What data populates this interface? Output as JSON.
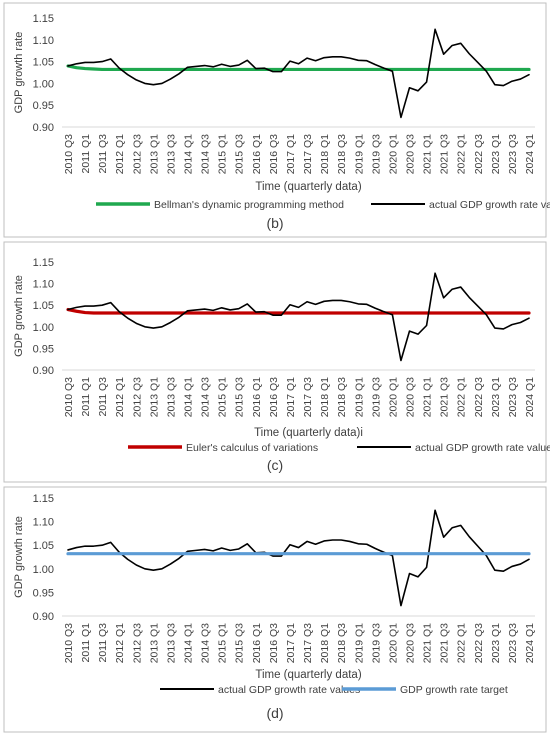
{
  "chart_data": [
    {
      "type": "line",
      "panel_label": "(b)",
      "xlabel": "Time (quarterly data)",
      "ylabel": "GDP growth rate",
      "ylim": [
        0.9,
        1.15
      ],
      "yticks": [
        "0.90",
        "0.95",
        "1.00",
        "1.05",
        "1.10",
        "1.15"
      ],
      "grid": false,
      "legend_position": "bottom",
      "series": [
        {
          "name": "Bellman's dynamic programming method",
          "color": "#1fa84f",
          "values": [
            1.04,
            1.036,
            1.034,
            1.033,
            1.032,
            1.032,
            1.032,
            1.032,
            1.032,
            1.032,
            1.032,
            1.032,
            1.032,
            1.032,
            1.032,
            1.032,
            1.032,
            1.032,
            1.032,
            1.032,
            1.032,
            1.032,
            1.032,
            1.032,
            1.032,
            1.032,
            1.032,
            1.032,
            1.032,
            1.032,
            1.032,
            1.032,
            1.032,
            1.032,
            1.032,
            1.032,
            1.032,
            1.032,
            1.032,
            1.032,
            1.032,
            1.032,
            1.032,
            1.032,
            1.032,
            1.032,
            1.032,
            1.032,
            1.032,
            1.032,
            1.032,
            1.032,
            1.032,
            1.032,
            1.032
          ]
        },
        {
          "name": "actual GDP growth rate values",
          "color": "#000000",
          "ref": "actual"
        }
      ]
    },
    {
      "type": "line",
      "panel_label": "(c)",
      "xlabel": "Time (quarterly data)i",
      "ylabel": "GDP growth rate",
      "ylim": [
        0.9,
        1.15
      ],
      "yticks": [
        "0.90",
        "0.95",
        "1.00",
        "1.05",
        "1.10",
        "1.15"
      ],
      "grid": false,
      "legend_position": "bottom",
      "series": [
        {
          "name": "Euler's calculus of variations",
          "color": "#c00000",
          "values": [
            1.04,
            1.036,
            1.033,
            1.032,
            1.032,
            1.032,
            1.032,
            1.032,
            1.032,
            1.032,
            1.032,
            1.032,
            1.032,
            1.032,
            1.032,
            1.032,
            1.032,
            1.032,
            1.032,
            1.032,
            1.032,
            1.032,
            1.032,
            1.032,
            1.032,
            1.032,
            1.032,
            1.032,
            1.032,
            1.032,
            1.032,
            1.032,
            1.032,
            1.032,
            1.032,
            1.032,
            1.032,
            1.032,
            1.032,
            1.032,
            1.032,
            1.032,
            1.032,
            1.032,
            1.032,
            1.032,
            1.032,
            1.032,
            1.032,
            1.032,
            1.032,
            1.032,
            1.032,
            1.032,
            1.032
          ]
        },
        {
          "name": "actual GDP growth rate values",
          "color": "#000000",
          "ref": "actual"
        }
      ]
    },
    {
      "type": "line",
      "panel_label": "(d)",
      "xlabel": "Time (quarterly data)",
      "ylabel": "GDP growth rate",
      "ylim": [
        0.9,
        1.15
      ],
      "yticks": [
        "0.90",
        "0.95",
        "1.00",
        "1.05",
        "1.10",
        "1.15"
      ],
      "grid": false,
      "legend_position": "bottom",
      "series": [
        {
          "name": "actual GDP growth rate values",
          "color": "#000000",
          "ref": "actual"
        },
        {
          "name": "GDP growth rate target",
          "color": "#5b9bd5",
          "values": [
            1.032,
            1.032,
            1.032,
            1.032,
            1.032,
            1.032,
            1.032,
            1.032,
            1.032,
            1.032,
            1.032,
            1.032,
            1.032,
            1.032,
            1.032,
            1.032,
            1.032,
            1.032,
            1.032,
            1.032,
            1.032,
            1.032,
            1.032,
            1.032,
            1.032,
            1.032,
            1.032,
            1.032,
            1.032,
            1.032,
            1.032,
            1.032,
            1.032,
            1.032,
            1.032,
            1.032,
            1.032,
            1.032,
            1.032,
            1.032,
            1.032,
            1.032,
            1.032,
            1.032,
            1.032,
            1.032,
            1.032,
            1.032,
            1.032,
            1.032,
            1.032,
            1.032,
            1.032,
            1.032,
            1.032
          ]
        }
      ]
    }
  ],
  "shared": {
    "x": [
      "2010 Q3",
      "2010 Q4",
      "2011 Q1",
      "2011 Q2",
      "2011 Q3",
      "2011 Q4",
      "2012 Q1",
      "2012 Q2",
      "2012 Q3",
      "2012 Q4",
      "2013 Q1",
      "2013 Q2",
      "2013 Q3",
      "2013 Q4",
      "2014 Q1",
      "2014 Q2",
      "2014 Q3",
      "2014 Q4",
      "2015 Q1",
      "2015 Q2",
      "2015 Q3",
      "2015 Q4",
      "2016 Q1",
      "2016 Q2",
      "2016 Q3",
      "2016 Q4",
      "2017 Q1",
      "2017 Q2",
      "2017 Q3",
      "2017 Q4",
      "2018 Q1",
      "2018 Q2",
      "2018 Q3",
      "2018 Q4",
      "2019 Q1",
      "2019 Q2",
      "2019 Q3",
      "2019 Q4",
      "2020 Q1",
      "2020 Q2",
      "2020 Q3",
      "2020 Q4",
      "2021 Q1",
      "2021 Q2",
      "2021 Q3",
      "2021 Q4",
      "2022 Q1",
      "2022 Q2",
      "2022 Q3",
      "2022 Q4",
      "2023 Q1",
      "2023 Q2",
      "2023 Q3",
      "2023 Q4",
      "2024 Q1"
    ],
    "xtick_labels": [
      "2010 Q3",
      "2011 Q1",
      "2011 Q3",
      "2012 Q1",
      "2012 Q3",
      "2013 Q1",
      "2013 Q3",
      "2014 Q1",
      "2014 Q3",
      "2015 Q1",
      "2015 Q3",
      "2016 Q1",
      "2016 Q3",
      "2017 Q1",
      "2017 Q3",
      "2018 Q1",
      "2018 Q3",
      "2019 Q1",
      "2019 Q3",
      "2020 Q1",
      "2020 Q3",
      "2021 Q1",
      "2021 Q3",
      "2022 Q1",
      "2022 Q3",
      "2023 Q1",
      "2023 Q3",
      "2024 Q1"
    ],
    "actual": [
      1.04,
      1.045,
      1.048,
      1.048,
      1.05,
      1.056,
      1.035,
      1.02,
      1.008,
      1.0,
      0.997,
      1.0,
      1.01,
      1.022,
      1.037,
      1.039,
      1.041,
      1.038,
      1.044,
      1.039,
      1.042,
      1.053,
      1.034,
      1.035,
      1.027,
      1.027,
      1.051,
      1.045,
      1.058,
      1.052,
      1.059,
      1.061,
      1.061,
      1.058,
      1.053,
      1.052,
      1.043,
      1.035,
      1.028,
      0.922,
      0.99,
      0.983,
      1.003,
      1.124,
      1.067,
      1.087,
      1.092,
      1.068,
      1.048,
      1.028,
      0.997,
      0.995,
      1.005,
      1.01,
      1.02
    ]
  }
}
